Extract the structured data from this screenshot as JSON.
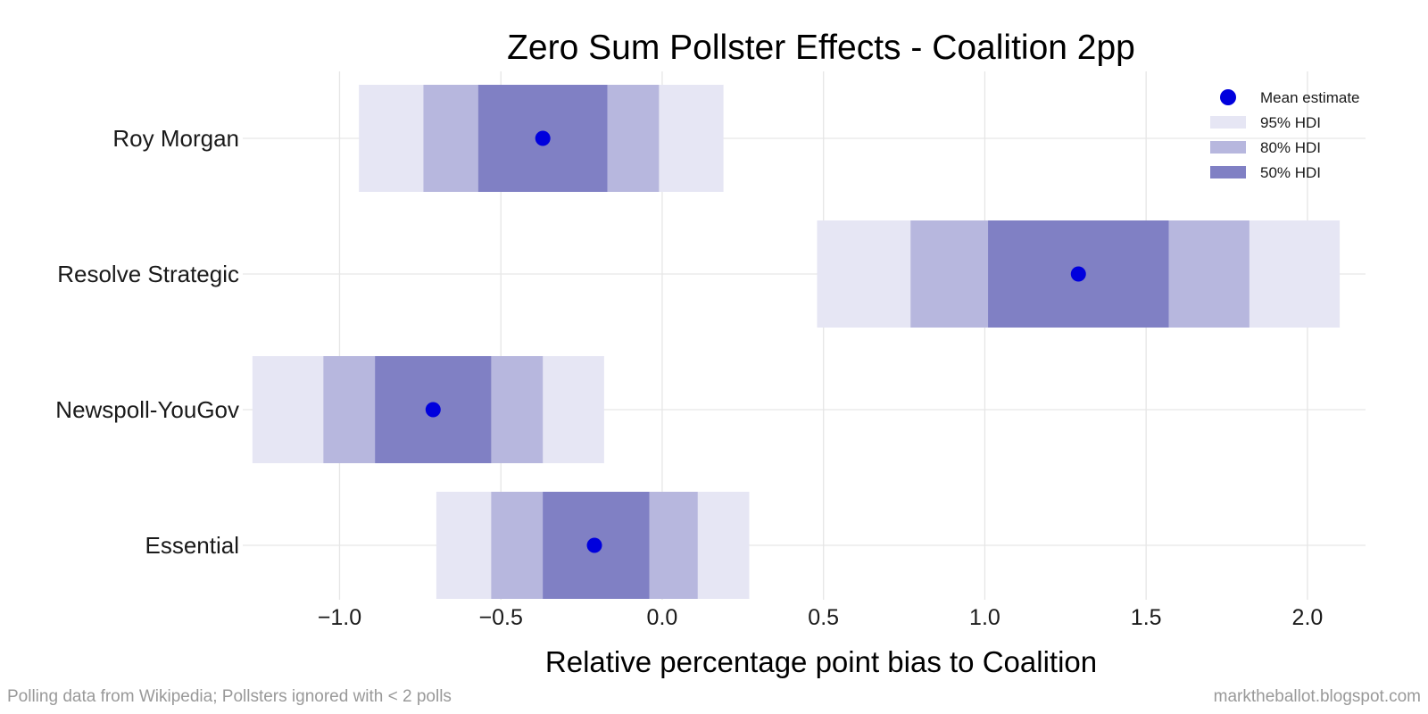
{
  "chart_data": {
    "type": "interval",
    "title": "Zero Sum Pollster Effects - Coalition 2pp",
    "xlabel": "Relative percentage point bias to Coalition",
    "ylabel": "",
    "xlim": [
      -1.3,
      2.18
    ],
    "x_ticks": [
      -1.0,
      -0.5,
      0.0,
      0.5,
      1.0,
      1.5,
      2.0
    ],
    "x_tick_labels": [
      "−1.0",
      "−0.5",
      "0.0",
      "0.5",
      "1.0",
      "1.5",
      "2.0"
    ],
    "categories": [
      "Roy Morgan",
      "Resolve Strategic",
      "Newspoll-YouGov",
      "Essential"
    ],
    "series": [
      {
        "name": "Roy Morgan",
        "mean": -0.37,
        "hdi95": [
          -0.94,
          0.19
        ],
        "hdi80": [
          -0.74,
          -0.01
        ],
        "hdi50": [
          -0.57,
          -0.17
        ]
      },
      {
        "name": "Resolve Strategic",
        "mean": 1.29,
        "hdi95": [
          0.48,
          2.1
        ],
        "hdi80": [
          0.77,
          1.82
        ],
        "hdi50": [
          1.01,
          1.57
        ]
      },
      {
        "name": "Newspoll-YouGov",
        "mean": -0.71,
        "hdi95": [
          -1.27,
          -0.18
        ],
        "hdi80": [
          -1.05,
          -0.37
        ],
        "hdi50": [
          -0.89,
          -0.53
        ]
      },
      {
        "name": "Essential",
        "mean": -0.21,
        "hdi95": [
          -0.7,
          0.27
        ],
        "hdi80": [
          -0.53,
          0.11
        ],
        "hdi50": [
          -0.37,
          -0.04
        ]
      }
    ],
    "legend": {
      "position": "top-right",
      "items": [
        {
          "label": "Mean estimate",
          "kind": "marker"
        },
        {
          "label": "95% HDI",
          "kind": "band95"
        },
        {
          "label": "80% HDI",
          "kind": "band80"
        },
        {
          "label": "50% HDI",
          "kind": "band50"
        }
      ]
    },
    "grid": true
  },
  "colors": {
    "mean_marker": "#0000dd",
    "band95": "#e6e6f4",
    "band80": "#b7b7de",
    "band50": "#8080c4",
    "grid": "#e6e6e6",
    "text": "#1a1a1a",
    "footnote": "#999999"
  },
  "footnotes": {
    "left": "Polling data from Wikipedia; Pollsters ignored with < 2 polls",
    "right": "marktheballot.blogspot.com"
  }
}
